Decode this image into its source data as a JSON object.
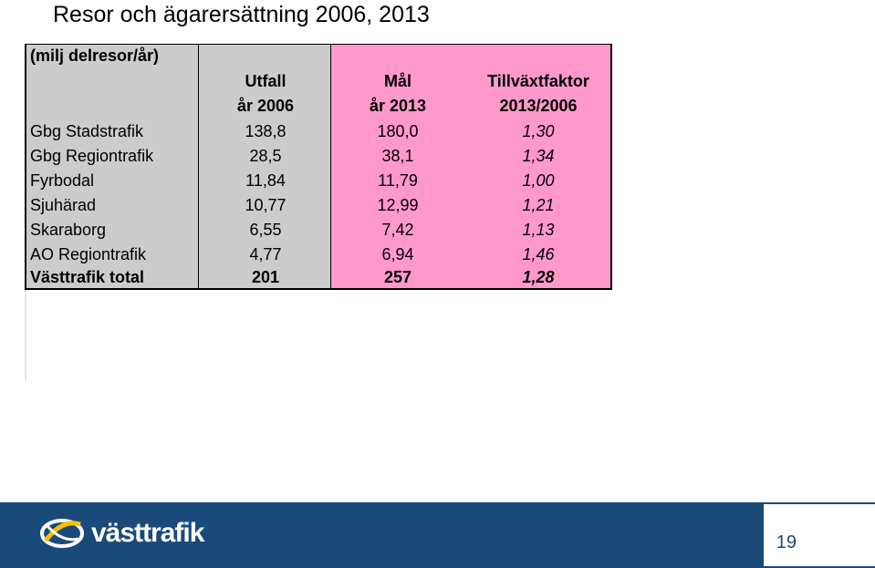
{
  "title": "Resor och ägarersättning 2006, 2013",
  "table": {
    "unit_label": "(milj delresor/år)",
    "headers": {
      "utfall_line1": "Utfall",
      "utfall_line2": "år 2006",
      "mal_line1": "Mål",
      "mal_line2": "år 2013",
      "tf_line1": "Tillväxtfaktor",
      "tf_line2": "2013/2006"
    },
    "rows": [
      {
        "label": "Gbg Stadstrafik",
        "utfall": "138,8",
        "mal": "180,0",
        "tf": "1,30"
      },
      {
        "label": "Gbg Regiontrafik",
        "utfall": "28,5",
        "mal": "38,1",
        "tf": "1,34"
      },
      {
        "label": "Fyrbodal",
        "utfall": "11,84",
        "mal": "11,79",
        "tf": "1,00"
      },
      {
        "label": "Sjuhärad",
        "utfall": "10,77",
        "mal": "12,99",
        "tf": "1,21"
      },
      {
        "label": "Skaraborg",
        "utfall": "6,55",
        "mal": "7,42",
        "tf": "1,13"
      },
      {
        "label": "AO Regiontrafik",
        "utfall": "4,77",
        "mal": "6,94",
        "tf": "1,46"
      }
    ],
    "total": {
      "label": "Västtrafik total",
      "utfall": "201",
      "mal": "257",
      "tf": "1,28"
    }
  },
  "footer": {
    "logo_text": "västtrafik",
    "page_number": "19",
    "bar_color": "#1a4a7a"
  },
  "colors": {
    "gray_column": "#cccccc",
    "pink_column": "#ff99cc"
  }
}
